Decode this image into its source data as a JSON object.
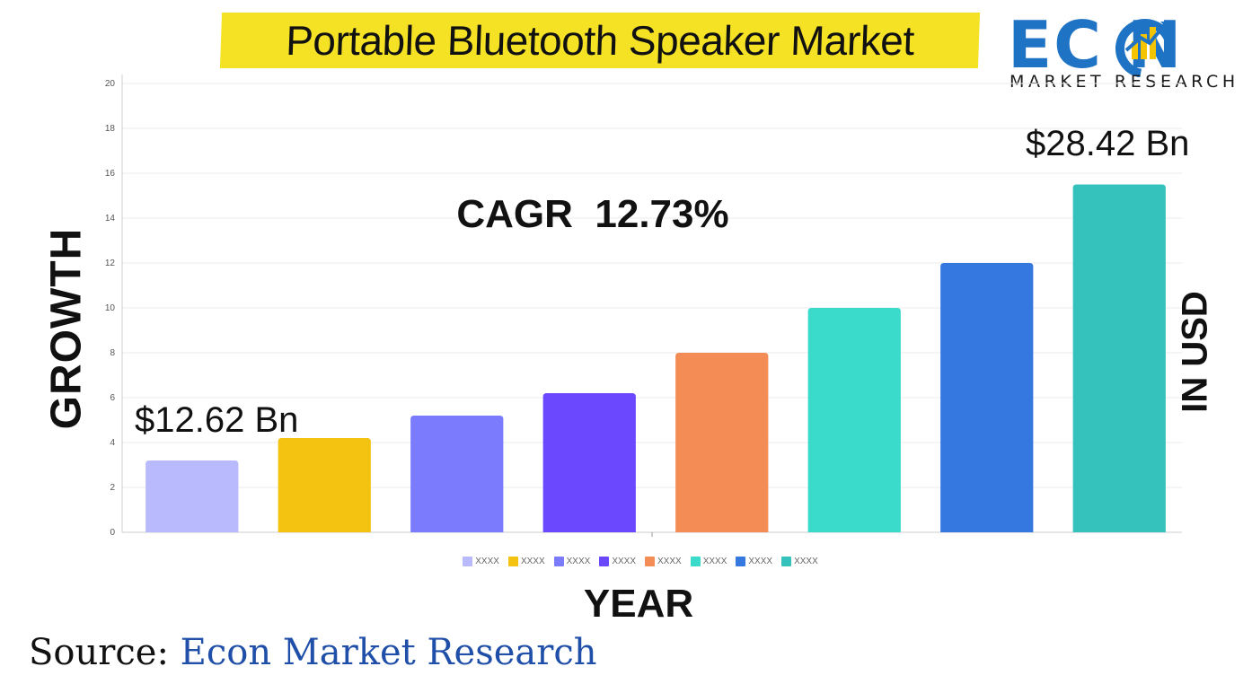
{
  "header": {
    "title": "Portable Bluetooth Speaker Market"
  },
  "logo": {
    "word": "EC  N",
    "subtitle": "MARKET RESEARCH",
    "colors": {
      "primary": "#1f73c4",
      "accent": "#f5c400"
    }
  },
  "annotations": {
    "cagr": "CAGR  12.73%",
    "start_value": "$12.62 Bn",
    "end_value": "$28.42 Bn"
  },
  "source": {
    "label": "Source:",
    "name": " Econ Market Research"
  },
  "chart_data": {
    "type": "bar",
    "categories": [
      "XXXX",
      "XXXX",
      "XXXX",
      "XXXX",
      "XXXX",
      "XXXX",
      "XXXX",
      "XXXX"
    ],
    "values": [
      3.2,
      4.2,
      5.2,
      6.2,
      8.0,
      10.0,
      12.0,
      15.5
    ],
    "colors": [
      "#b9b9fd",
      "#f4c211",
      "#7b7bfd",
      "#6b47fd",
      "#f48c55",
      "#3bdbcb",
      "#3478e0",
      "#35c2bc"
    ],
    "xlabel": "YEAR",
    "ylabel": "GROWTH",
    "ylabel_right": "IN USD",
    "ylim": [
      0,
      20
    ],
    "yticks": [
      0,
      2,
      4,
      6,
      8,
      10,
      12,
      14,
      16,
      18,
      20
    ],
    "grid": true,
    "legend": "bottom"
  }
}
